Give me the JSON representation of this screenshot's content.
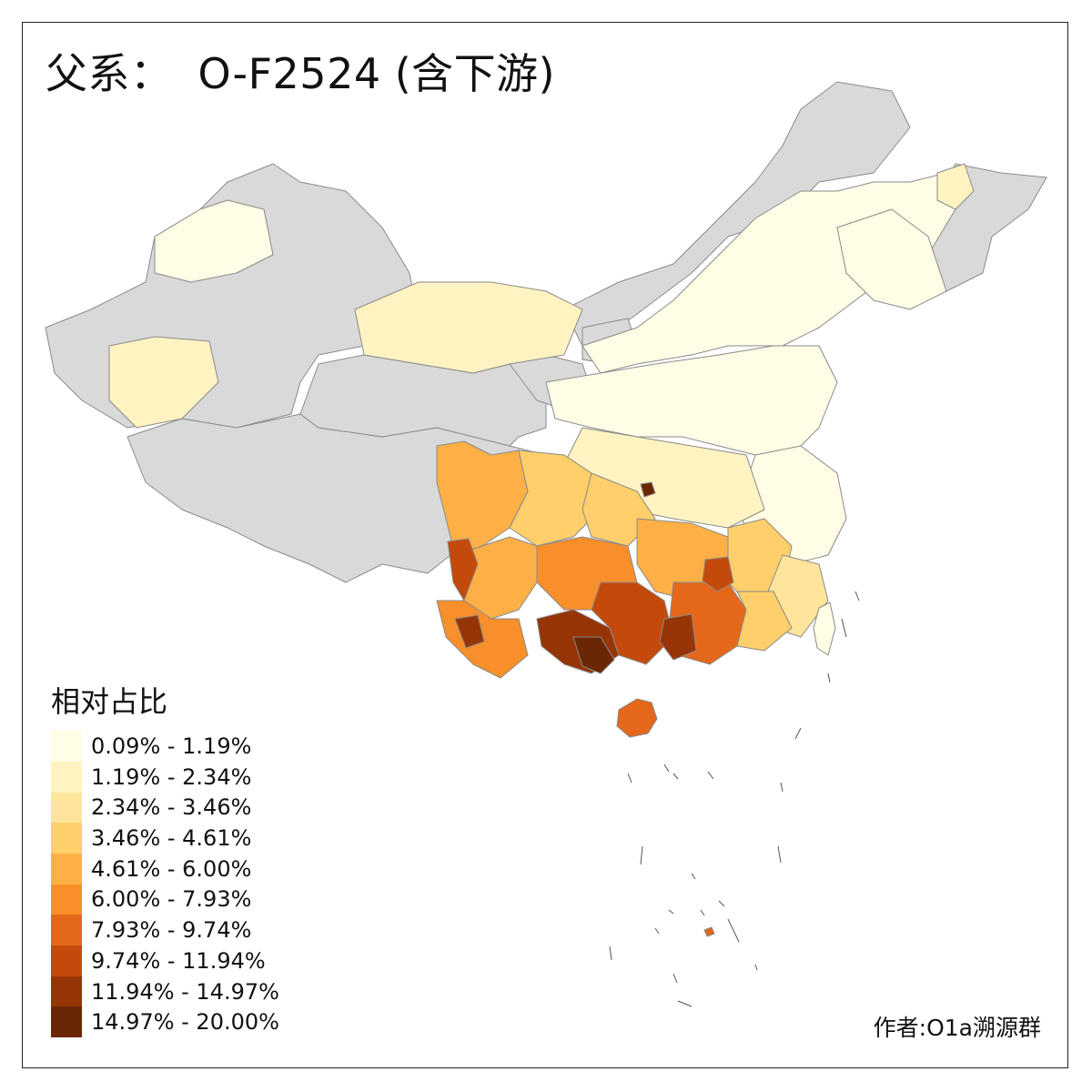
{
  "title": {
    "prefix": "父系：",
    "name": "O-F2524 (含下游)"
  },
  "legend": {
    "title": "相对占比",
    "position": "bottom-left",
    "bins": [
      {
        "label": "0.09% - 1.19%",
        "color": "#fffde6"
      },
      {
        "label": "1.19% - 2.34%",
        "color": "#fff3c2"
      },
      {
        "label": "2.34% - 3.46%",
        "color": "#fee59b"
      },
      {
        "label": "3.46% - 4.61%",
        "color": "#fecf6a"
      },
      {
        "label": "4.61% - 6.00%",
        "color": "#feb046"
      },
      {
        "label": "6.00% - 7.93%",
        "color": "#f98f2a"
      },
      {
        "label": "7.93% - 9.74%",
        "color": "#e5681a"
      },
      {
        "label": "9.74% - 11.94%",
        "color": "#c44a0c"
      },
      {
        "label": "11.94% - 14.97%",
        "color": "#973405"
      },
      {
        "label": "14.97% - 20.00%",
        "color": "#6b2605"
      }
    ]
  },
  "no_data_color": "#d9d9d9",
  "author": "作者:O1a溯源群"
}
